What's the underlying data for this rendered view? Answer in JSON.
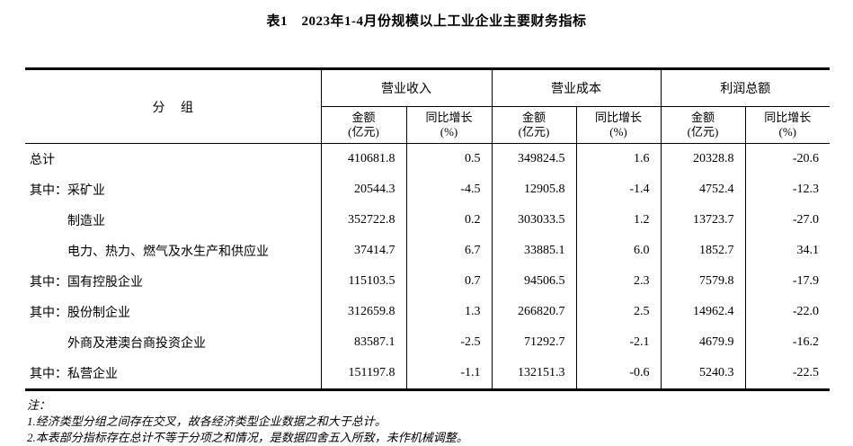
{
  "title": "表1　2023年1-4月份规模以上工业企业主要财务指标",
  "table": {
    "group_column_header": "分　 组",
    "column_groups": [
      {
        "label": "营业收入",
        "sub": [
          {
            "l1": "金额",
            "l2": "(亿元)"
          },
          {
            "l1": "同比增长",
            "l2": "(%)"
          }
        ]
      },
      {
        "label": "营业成本",
        "sub": [
          {
            "l1": "金额",
            "l2": "(亿元)"
          },
          {
            "l1": "同比增长",
            "l2": "(%)"
          }
        ]
      },
      {
        "label": "利润总额",
        "sub": [
          {
            "l1": "金额",
            "l2": "(亿元)"
          },
          {
            "l1": "同比增长",
            "l2": "(%)"
          }
        ]
      }
    ],
    "rows": [
      {
        "prefix": "",
        "label": "总计",
        "indent": false,
        "values": [
          "410681.8",
          "0.5",
          "349824.5",
          "1.6",
          "20328.8",
          "-20.6"
        ]
      },
      {
        "prefix": "其中：",
        "label": "采矿业",
        "indent": false,
        "values": [
          "20544.3",
          "-4.5",
          "12905.8",
          "-1.4",
          "4752.4",
          "-12.3"
        ]
      },
      {
        "prefix": "",
        "label": "制造业",
        "indent": true,
        "values": [
          "352722.8",
          "0.2",
          "303033.5",
          "1.2",
          "13723.7",
          "-27.0"
        ]
      },
      {
        "prefix": "",
        "label": "电力、热力、燃气及水生产和供应业",
        "indent": true,
        "values": [
          "37414.7",
          "6.7",
          "33885.1",
          "6.0",
          "1852.7",
          "34.1"
        ]
      },
      {
        "prefix": "其中：",
        "label": "国有控股企业",
        "indent": false,
        "values": [
          "115103.5",
          "0.7",
          "94506.5",
          "2.3",
          "7579.8",
          "-17.9"
        ]
      },
      {
        "prefix": "其中：",
        "label": "股份制企业",
        "indent": false,
        "values": [
          "312659.8",
          "1.3",
          "266820.7",
          "2.5",
          "14962.4",
          "-22.0"
        ]
      },
      {
        "prefix": "",
        "label": "外商及港澳台商投资企业",
        "indent": true,
        "values": [
          "83587.1",
          "-2.5",
          "71292.7",
          "-2.1",
          "4679.9",
          "-16.2"
        ]
      },
      {
        "prefix": "其中：",
        "label": "私营企业",
        "indent": false,
        "values": [
          "151197.8",
          "-1.1",
          "132151.3",
          "-0.6",
          "5240.3",
          "-22.5"
        ]
      }
    ]
  },
  "notes": {
    "heading": "注：",
    "items": [
      "1.经济类型分组之间存在交叉，故各经济类型企业数据之和大于总计。",
      "2.本表部分指标存在总计不等于分项之和情况，是数据四舍五入所致，未作机械调整。"
    ]
  }
}
